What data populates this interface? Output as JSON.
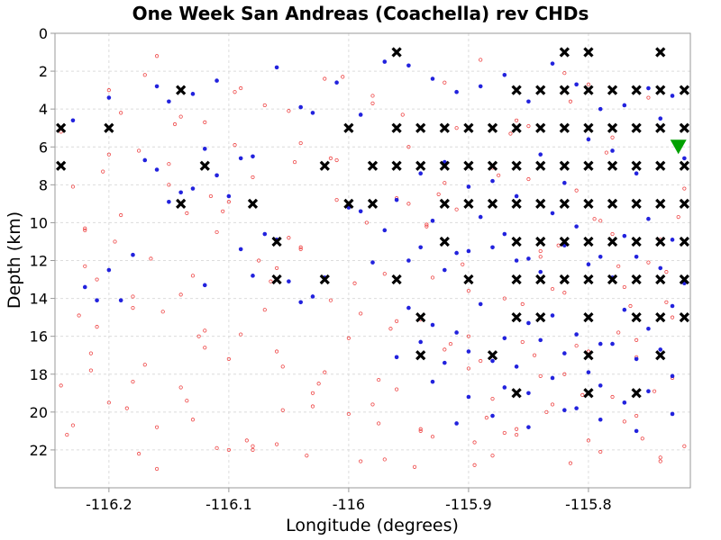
{
  "chart_data": {
    "type": "scatter",
    "title": "One Week San Andreas (Coachella) rev CHDs",
    "xlabel": "Longitude (degrees)",
    "ylabel": "Depth (km)",
    "xlim": [
      -116.245,
      -115.715
    ],
    "ylim": [
      24,
      0
    ],
    "y_inverted": true,
    "grid": true,
    "x_ticks": [
      -116.2,
      -116.1,
      -116,
      -115.9,
      -115.8
    ],
    "x_tick_labels": [
      "-116.2",
      "-116.1",
      "-116",
      "-115.9",
      "-115.8"
    ],
    "y_ticks": [
      0,
      2,
      4,
      6,
      8,
      10,
      12,
      14,
      16,
      18,
      20,
      22
    ],
    "y_tick_labels": [
      "0",
      "2",
      "4",
      "6",
      "8",
      "10",
      "12",
      "14",
      "16",
      "18",
      "20",
      "22"
    ],
    "series": [
      {
        "marker": "x",
        "color": "#000000",
        "x": [
          -115.96,
          -115.82,
          -115.8,
          -115.74,
          -116.14,
          -115.86,
          -115.84,
          -115.82,
          -115.8,
          -115.78,
          -115.76,
          -115.74,
          -115.72,
          -116.24,
          -116.2,
          -116.0,
          -115.96,
          -115.94,
          -115.92,
          -115.9,
          -115.88,
          -115.86,
          -115.84,
          -115.82,
          -115.8,
          -115.78,
          -115.76,
          -115.74,
          -115.72,
          -116.24,
          -116.12,
          -116.02,
          -115.98,
          -115.96,
          -115.94,
          -115.92,
          -115.9,
          -115.88,
          -115.86,
          -115.84,
          -115.82,
          -115.8,
          -115.78,
          -115.76,
          -115.74,
          -115.72,
          -116.14,
          -116.08,
          -116.0,
          -115.98,
          -115.92,
          -115.9,
          -115.88,
          -115.86,
          -115.84,
          -115.82,
          -115.8,
          -115.78,
          -115.76,
          -115.74,
          -115.72,
          -116.06,
          -115.92,
          -115.86,
          -115.84,
          -115.82,
          -115.8,
          -115.78,
          -115.76,
          -115.74,
          -115.72,
          -116.06,
          -116.02,
          -115.96,
          -115.9,
          -115.86,
          -115.84,
          -115.82,
          -115.8,
          -115.78,
          -115.76,
          -115.74,
          -115.72,
          -115.94,
          -115.86,
          -115.84,
          -115.8,
          -115.76,
          -115.74,
          -115.72,
          -115.94,
          -115.88,
          -115.8,
          -115.74,
          -115.86,
          -115.8,
          -115.76
        ],
        "y": [
          1,
          1,
          1,
          1,
          3,
          3,
          3,
          3,
          3,
          3,
          3,
          3,
          3,
          5,
          5,
          5,
          5,
          5,
          5,
          5,
          5,
          5,
          5,
          5,
          5,
          5,
          5,
          5,
          5,
          7,
          7,
          7,
          7,
          7,
          7,
          7,
          7,
          7,
          7,
          7,
          7,
          7,
          7,
          7,
          7,
          7,
          9,
          9,
          9,
          9,
          9,
          9,
          9,
          9,
          9,
          9,
          9,
          9,
          9,
          9,
          9,
          11,
          11,
          11,
          11,
          11,
          11,
          11,
          11,
          11,
          11,
          13,
          13,
          13,
          13,
          13,
          13,
          13,
          13,
          13,
          13,
          13,
          13,
          15,
          15,
          15,
          15,
          15,
          15,
          15,
          17,
          17,
          17,
          17,
          19,
          19,
          19
        ]
      },
      {
        "marker": "triangle-down",
        "color": "#00a000",
        "x": [
          -115.725
        ],
        "y": [
          6
        ]
      },
      {
        "marker": "dot",
        "color": "#2222dd",
        "x": [
          -116.23,
          -116.2,
          -116.17,
          -116.16,
          -116.15,
          -116.13,
          -116.12,
          -116.11,
          -116.09,
          -116.08,
          -116.06,
          -116.04,
          -116.03,
          -116.01,
          -115.99,
          -115.97,
          -115.95,
          -115.93,
          -115.91,
          -115.89,
          -115.87,
          -115.85,
          -115.83,
          -115.81,
          -115.79,
          -115.77,
          -115.75,
          -115.73,
          -116.22,
          -116.19,
          -116.16,
          -116.13,
          -116.1,
          -116.07,
          -116.05,
          -116.02,
          -115.99,
          -115.96,
          -115.94,
          -115.92,
          -115.9,
          -115.88,
          -115.86,
          -115.84,
          -115.82,
          -115.8,
          -115.78,
          -115.76,
          -115.74,
          -115.72,
          -116.2,
          -116.18,
          -116.15,
          -116.12,
          -116.09,
          -116.06,
          -116.03,
          -116.0,
          -115.97,
          -115.95,
          -115.93,
          -115.91,
          -115.89,
          -115.87,
          -115.85,
          -115.83,
          -115.81,
          -115.79,
          -115.77,
          -115.75,
          -115.73,
          -116.21,
          -116.14,
          -116.11,
          -116.08,
          -116.04,
          -115.98,
          -115.94,
          -115.92,
          -115.9,
          -115.88,
          -115.86,
          -115.84,
          -115.82,
          -115.8,
          -115.78,
          -115.76,
          -115.74,
          -115.72,
          -115.95,
          -115.93,
          -115.91,
          -115.89,
          -115.87,
          -115.85,
          -115.83,
          -115.81,
          -115.79,
          -115.77,
          -115.75,
          -115.73,
          -115.96,
          -115.94,
          -115.92,
          -115.9,
          -115.88,
          -115.86,
          -115.84,
          -115.82,
          -115.8,
          -115.78,
          -115.76,
          -115.74,
          -115.93,
          -115.9,
          -115.87,
          -115.85,
          -115.83,
          -115.81,
          -115.79,
          -115.77,
          -115.75,
          -115.73,
          -115.91,
          -115.88,
          -115.85,
          -115.82,
          -115.79,
          -115.76,
          -115.73
        ],
        "y": [
          4.6,
          3.4,
          6.7,
          2.8,
          3.6,
          3.2,
          6.1,
          2.5,
          11.4,
          6.5,
          1.8,
          3.9,
          4.2,
          2.6,
          4.3,
          1.5,
          1.7,
          2.4,
          3.1,
          2.8,
          2.2,
          3.6,
          1.6,
          2.7,
          4.0,
          3.8,
          2.9,
          3.3,
          13.4,
          14.1,
          7.2,
          8.2,
          8.6,
          10.6,
          13.1,
          12.9,
          9.4,
          8.8,
          7.4,
          6.8,
          8.1,
          7.8,
          8.6,
          6.4,
          7.9,
          5.6,
          6.2,
          7.4,
          4.5,
          6.6,
          12.5,
          11.7,
          8.9,
          13.3,
          6.6,
          10.9,
          13.9,
          9.2,
          10.4,
          12.0,
          9.9,
          11.6,
          9.7,
          10.6,
          11.9,
          9.5,
          10.2,
          11.8,
          10.7,
          9.8,
          10.9,
          14.1,
          8.4,
          7.5,
          12.8,
          14.2,
          12.1,
          11.3,
          12.5,
          11.5,
          11.3,
          12.0,
          12.6,
          11.2,
          12.2,
          12.9,
          11.8,
          12.4,
          13.2,
          14.5,
          15.4,
          15.8,
          14.3,
          16.1,
          15.3,
          14.9,
          15.9,
          16.4,
          14.6,
          15.6,
          14.4,
          17.1,
          16.3,
          17.4,
          16.8,
          17.3,
          17.6,
          16.2,
          16.9,
          17.9,
          16.4,
          17.2,
          16.7,
          18.4,
          19.2,
          18.7,
          19.0,
          18.2,
          19.8,
          18.6,
          19.5,
          18.9,
          18.1,
          20.6,
          20.2,
          20.8,
          19.9,
          20.4,
          21.0,
          20.1
        ]
      },
      {
        "marker": "open-circle",
        "color": "#ee4444",
        "x": [
          -116.24,
          -116.23,
          -116.22,
          -116.21,
          -116.2,
          -116.19,
          -116.18,
          -116.17,
          -116.16,
          -116.15,
          -116.14,
          -116.13,
          -116.12,
          -116.11,
          -116.1,
          -116.09,
          -116.08,
          -116.07,
          -116.06,
          -116.05,
          -116.04,
          -116.03,
          -116.02,
          -116.01,
          -116.0,
          -115.99,
          -115.98,
          -115.97,
          -115.96,
          -115.95,
          -115.94,
          -115.93,
          -115.92,
          -115.91,
          -115.9,
          -115.89,
          -115.88,
          -115.87,
          -115.86,
          -115.85,
          -115.84,
          -115.83,
          -115.82,
          -115.81,
          -115.8,
          -115.79,
          -115.78,
          -115.77,
          -115.76,
          -115.75,
          -115.74,
          -115.73,
          -115.72,
          -116.235,
          -116.215,
          -116.195,
          -116.175,
          -116.155,
          -116.135,
          -116.115,
          -116.095,
          -116.075,
          -116.055,
          -116.035,
          -116.015,
          -115.995,
          -115.975,
          -115.955,
          -115.935,
          -115.915,
          -115.895,
          -115.875,
          -115.855,
          -115.835,
          -115.815,
          -115.795,
          -115.775,
          -115.755,
          -115.735,
          -116.24,
          -116.22,
          -116.2,
          -116.18,
          -116.16,
          -116.14,
          -116.12,
          -116.1,
          -116.08,
          -116.06,
          -116.04,
          -116.02,
          -116.0,
          -115.98,
          -115.96,
          -115.94,
          -115.92,
          -115.9,
          -115.88,
          -115.86,
          -115.84,
          -115.82,
          -115.8,
          -115.78,
          -115.76,
          -115.74,
          -115.72,
          -116.225,
          -116.205,
          -116.185,
          -116.165,
          -116.145,
          -116.125,
          -116.105,
          -116.085,
          -116.065,
          -116.045,
          -116.025,
          -116.005,
          -115.985,
          -115.965,
          -115.945,
          -115.925,
          -115.905,
          -115.885,
          -115.865,
          -115.845,
          -115.825,
          -115.805,
          -115.785,
          -115.765,
          -115.745,
          -115.725,
          -116.23,
          -116.21,
          -116.19,
          -116.17,
          -116.15,
          -116.13,
          -116.11,
          -116.09,
          -116.07,
          -116.05,
          -116.03,
          -116.01,
          -115.99,
          -115.97,
          -115.95,
          -115.93,
          -115.91,
          -115.89,
          -115.87,
          -115.85,
          -115.83,
          -115.81,
          -115.79,
          -115.77,
          -115.75,
          -115.73,
          -116.215,
          -116.175,
          -116.135,
          -116.095,
          -116.055,
          -116.015,
          -115.975,
          -115.935,
          -115.895,
          -115.855,
          -115.815,
          -115.775,
          -115.735,
          -116.2,
          -116.16,
          -116.12,
          -116.08,
          -116.04,
          -116.0,
          -115.96,
          -115.92,
          -115.88,
          -115.84,
          -115.8,
          -115.76,
          -116.22,
          -116.18,
          -116.14,
          -116.1,
          -116.06,
          -116.02,
          -115.98,
          -115.94,
          -115.9,
          -115.86,
          -115.82,
          -115.78,
          -115.74
        ],
        "y": [
          5.2,
          8.1,
          12.3,
          15.5,
          3.0,
          9.6,
          18.4,
          2.2,
          1.2,
          6.9,
          13.8,
          20.4,
          4.7,
          10.5,
          17.2,
          2.9,
          7.6,
          14.6,
          21.7,
          4.1,
          11.3,
          19.0,
          2.4,
          8.8,
          16.1,
          22.6,
          3.7,
          12.7,
          18.8,
          6.0,
          15.1,
          21.3,
          2.6,
          9.3,
          17.7,
          1.4,
          7.1,
          14.0,
          20.9,
          4.9,
          11.8,
          19.6,
          2.1,
          8.3,
          16.8,
          22.1,
          5.5,
          13.4,
          20.2,
          3.4,
          10.9,
          18.2,
          21.8,
          21.2,
          16.9,
          11.0,
          6.2,
          14.7,
          19.4,
          8.6,
          3.1,
          12.0,
          17.6,
          22.3,
          6.6,
          13.2,
          20.6,
          4.3,
          10.2,
          16.4,
          22.8,
          7.5,
          14.3,
          20.0,
          3.6,
          9.8,
          15.8,
          21.4,
          12.6,
          18.6,
          10.4,
          6.4,
          13.9,
          20.8,
          4.4,
          16.6,
          8.9,
          22.0,
          12.4,
          5.8,
          17.9,
          9.1,
          3.3,
          15.2,
          21.0,
          7.9,
          13.6,
          19.3,
          4.6,
          11.5,
          18.0,
          2.7,
          10.6,
          16.2,
          22.4,
          8.2,
          14.9,
          7.3,
          19.8,
          11.9,
          4.8,
          16.0,
          9.4,
          21.5,
          13.1,
          6.8,
          18.5,
          2.3,
          10.0,
          15.6,
          22.9,
          8.5,
          12.2,
          20.3,
          5.3,
          17.0,
          11.2,
          19.1,
          6.3,
          14.4,
          18.9,
          9.7,
          20.7,
          13.0,
          4.2,
          17.5,
          8.0,
          12.8,
          21.9,
          15.9,
          3.8,
          10.8,
          19.7,
          6.7,
          14.8,
          22.5,
          9.0,
          12.9,
          5.0,
          17.3,
          21.1,
          7.7,
          13.5,
          16.5,
          9.9,
          20.5,
          12.1,
          15.0,
          17.8,
          22.2,
          9.5,
          5.9,
          19.9,
          14.1,
          18.3,
          10.1,
          21.6,
          16.3,
          22.7,
          12.3,
          14.2,
          19.5,
          23.0,
          15.7,
          21.8,
          11.4,
          20.1,
          8.7,
          16.7,
          22.3,
          18.1,
          21.5,
          17.1,
          10.3,
          14.5,
          18.7,
          22.0,
          16.8,
          7.0,
          19.6,
          20.9,
          16.0,
          21.2,
          13.7,
          19.2,
          22.6
        ]
      }
    ]
  }
}
